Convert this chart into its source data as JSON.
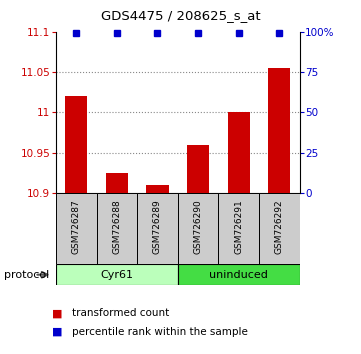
{
  "title": "GDS4475 / 208625_s_at",
  "samples": [
    "GSM726287",
    "GSM726288",
    "GSM726289",
    "GSM726290",
    "GSM726291",
    "GSM726292"
  ],
  "bar_values": [
    11.02,
    10.925,
    10.91,
    10.96,
    11.0,
    11.055
  ],
  "dot_pcts": [
    99,
    99,
    99,
    99,
    99,
    99
  ],
  "ylim": [
    10.9,
    11.1
  ],
  "y_ticks": [
    10.9,
    10.95,
    11.0,
    11.05,
    11.1
  ],
  "y_tick_labels": [
    "10.9",
    "10.95",
    "11",
    "11.05",
    "11.1"
  ],
  "right_yticks": [
    0,
    25,
    50,
    75,
    100
  ],
  "right_ytick_labels": [
    "0",
    "25",
    "50",
    "75",
    "100%"
  ],
  "bar_color": "#cc0000",
  "dot_color": "#0000cc",
  "bar_bottom": 10.9,
  "protocol_groups": [
    {
      "label": "Cyr61",
      "start": 0,
      "end": 3,
      "color": "#bbffbb"
    },
    {
      "label": "uninduced",
      "start": 3,
      "end": 6,
      "color": "#44dd44"
    }
  ],
  "protocol_label": "protocol",
  "legend_items": [
    {
      "color": "#cc0000",
      "label": "transformed count"
    },
    {
      "color": "#0000cc",
      "label": "percentile rank within the sample"
    }
  ],
  "grid_color": "#888888",
  "left_tick_color": "#cc0000",
  "right_tick_color": "#0000cc",
  "bg_color": "#ffffff",
  "sample_bg": "#cccccc",
  "title_fontsize": 9.5,
  "label_fontsize": 6.5,
  "axis_fontsize": 7.5,
  "proto_fontsize": 8,
  "legend_fontsize": 7.5
}
